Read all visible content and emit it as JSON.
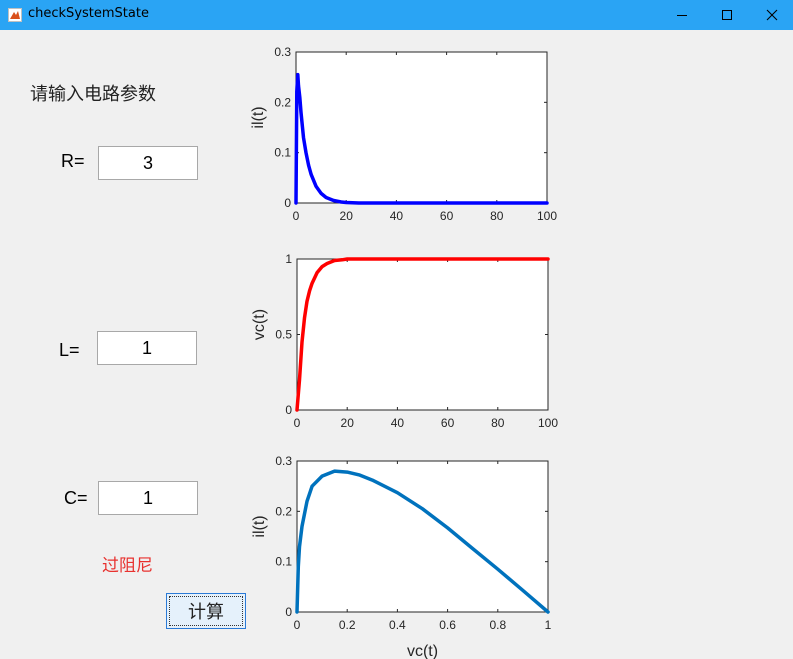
{
  "window": {
    "title": "checkSystemState"
  },
  "form": {
    "prompt": "请输入电路参数",
    "r_label": "R=",
    "r_value": "3",
    "l_label": "L=",
    "l_value": "1",
    "c_label": "C=",
    "c_value": "1",
    "status": "过阻尼",
    "status_color": "#e8312e",
    "compute_label": "计算"
  },
  "chart_data": [
    {
      "type": "line",
      "xlabel": "",
      "ylabel": "il(t)",
      "xlim": [
        0,
        100
      ],
      "ylim": [
        0,
        0.3
      ],
      "xticks": [
        "0",
        "20",
        "40",
        "60",
        "80",
        "100"
      ],
      "yticks": [
        "0",
        "0.1",
        "0.2",
        "0.3"
      ],
      "series": [
        {
          "color": "#0000ff",
          "x": [
            0,
            0.3,
            0.7,
            1,
            1.5,
            2,
            3,
            4,
            5,
            6,
            8,
            10,
            12,
            15,
            18,
            20,
            25,
            30,
            40,
            60,
            80,
            100
          ],
          "y": [
            0,
            0.222,
            0.255,
            0.233,
            0.21,
            0.18,
            0.13,
            0.1,
            0.075,
            0.057,
            0.033,
            0.019,
            0.011,
            0.005,
            0.002,
            0.001,
            0,
            0,
            0,
            0,
            0,
            0
          ]
        }
      ]
    },
    {
      "type": "line",
      "xlabel": "",
      "ylabel": "vc(t)",
      "xlim": [
        0,
        100
      ],
      "ylim": [
        0,
        1
      ],
      "xticks": [
        "0",
        "20",
        "40",
        "60",
        "80",
        "100"
      ],
      "yticks": [
        "0",
        "0.5",
        "1"
      ],
      "series": [
        {
          "color": "#ff0000",
          "x": [
            0,
            1,
            2,
            3,
            4,
            5,
            6,
            8,
            10,
            12,
            15,
            18,
            20,
            30,
            40,
            60,
            80,
            100
          ],
          "y": [
            0,
            0.2,
            0.45,
            0.61,
            0.72,
            0.79,
            0.84,
            0.91,
            0.95,
            0.97,
            0.99,
            0.995,
            1,
            1,
            1,
            1,
            1,
            1
          ]
        }
      ]
    },
    {
      "type": "line",
      "xlabel": "vc(t)",
      "ylabel": "il(t)",
      "xlim": [
        0,
        1
      ],
      "ylim": [
        0,
        0.3
      ],
      "xticks": [
        "0",
        "0.2",
        "0.4",
        "0.6",
        "0.8",
        "1"
      ],
      "yticks": [
        "0",
        "0.1",
        "0.2",
        "0.3"
      ],
      "series": [
        {
          "color": "#0072bd",
          "x": [
            0,
            0.005,
            0.01,
            0.02,
            0.04,
            0.06,
            0.1,
            0.15,
            0.2,
            0.25,
            0.3,
            0.4,
            0.5,
            0.6,
            0.7,
            0.8,
            0.9,
            1
          ],
          "y": [
            0,
            0.09,
            0.13,
            0.17,
            0.22,
            0.25,
            0.27,
            0.28,
            0.278,
            0.272,
            0.262,
            0.237,
            0.205,
            0.167,
            0.126,
            0.085,
            0.043,
            0
          ]
        }
      ]
    }
  ]
}
